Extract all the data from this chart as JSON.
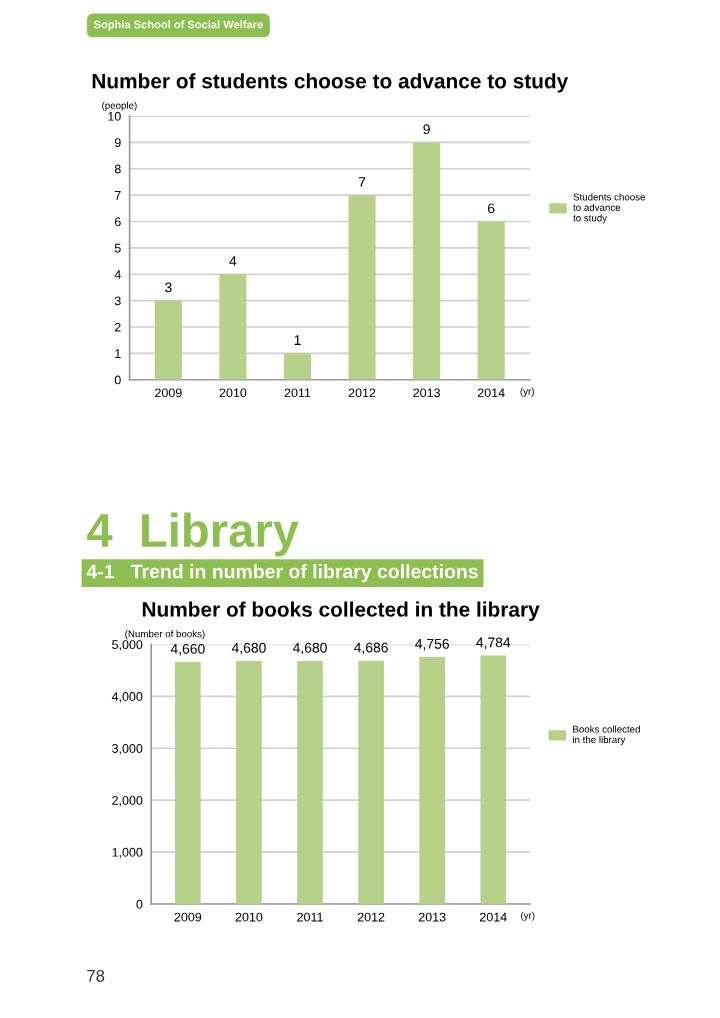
{
  "chart_data": [
    {
      "type": "bar",
      "title": "Number of students choose to advance to study",
      "ylabel": "(people)",
      "xlabel": "(yr)",
      "categories": [
        "2009",
        "2010",
        "2011",
        "2012",
        "2013",
        "2014"
      ],
      "series": [
        {
          "name": "Students choose\nto advance\nto study",
          "color": "#b5d18a",
          "values": [
            3,
            4,
            1,
            7,
            9,
            6
          ]
        }
      ],
      "ylim": [
        0,
        10
      ],
      "yticks": [
        0,
        1,
        2,
        3,
        4,
        5,
        6,
        7,
        8,
        9,
        10
      ],
      "grid": "y",
      "legend": "right",
      "data_labels": true,
      "annotations": [
        "Sophia School of Social Welfare"
      ]
    },
    {
      "type": "bar",
      "title": "Number of books collected in the library",
      "ylabel": "(Number of books)",
      "xlabel": "(yr)",
      "categories": [
        "2009",
        "2010",
        "2011",
        "2012",
        "2013",
        "2014"
      ],
      "series": [
        {
          "name": "Books collected\nin the library",
          "color": "#b5d18a",
          "values": [
            4660,
            4680,
            4680,
            4686,
            4756,
            4784
          ],
          "value_labels": [
            "4,660",
            "4,680",
            "4,680",
            "4,686",
            "4,756",
            "4,784"
          ]
        }
      ],
      "ylim": [
        0,
        5000
      ],
      "yticks": [
        0,
        {
          "value": 1000,
          "label": "1,000"
        },
        {
          "value": 2000,
          "label": "2,000"
        },
        {
          "value": 3000,
          "label": "3,000"
        },
        {
          "value": 4000,
          "label": "4,000"
        },
        {
          "value": 5000,
          "label": "5,000"
        }
      ],
      "grid": "y",
      "legend": "right",
      "annotations": [
        "4  Library",
        "4-1   Trend in number of library collections",
        "78"
      ]
    }
  ]
}
